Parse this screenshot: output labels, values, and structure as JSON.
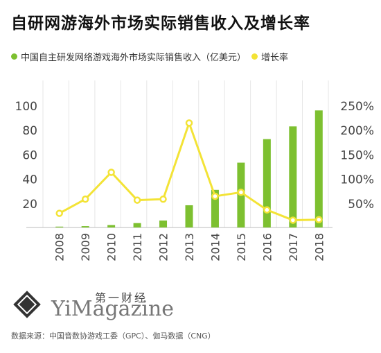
{
  "title": "自研网游海外市场实际销售收入及增长率",
  "legend": [
    {
      "label": "中国自主研发网络游戏海外市场实际销售收入（亿美元）",
      "color": "#7dc030"
    },
    {
      "label": "增长率",
      "color": "#f3e336"
    }
  ],
  "brand": {
    "cn": "第一财经",
    "en": "YiMagazine"
  },
  "source": "数据来源：中国音数协游戏工委（GPC）、伽马数据（CNG）",
  "chart_data": {
    "type": "bar",
    "categories": [
      "2008",
      "2009",
      "2010",
      "2011",
      "2012",
      "2013",
      "2014",
      "2015",
      "2016",
      "2017",
      "2018"
    ],
    "series": [
      {
        "name": "中国自主研发网络游戏海外市场实际销售收入（亿美元）",
        "type": "bar",
        "axis": "left",
        "color": "#7dc030",
        "values": [
          0.7,
          1.1,
          2.0,
          3.6,
          5.7,
          18.2,
          30.8,
          53.1,
          72.4,
          82.8,
          95.9
        ]
      },
      {
        "name": "增长率",
        "type": "line",
        "axis": "right",
        "color": "#f3e336",
        "values": [
          0.29,
          0.58,
          1.13,
          0.56,
          0.58,
          2.14,
          0.64,
          0.72,
          0.36,
          0.15,
          0.16
        ]
      }
    ],
    "left_axis": {
      "ticks": [
        "20",
        "40",
        "60",
        "80",
        "100"
      ],
      "values": [
        20,
        40,
        60,
        80,
        100
      ],
      "range": [
        0,
        100
      ]
    },
    "right_axis": {
      "ticks": [
        "50%",
        "100%",
        "150%",
        "200%",
        "250%"
      ],
      "values": [
        0.5,
        1.0,
        1.5,
        2.0,
        2.5
      ],
      "range": [
        0,
        2.5
      ]
    },
    "grid": true,
    "legend_position": "top-left"
  }
}
